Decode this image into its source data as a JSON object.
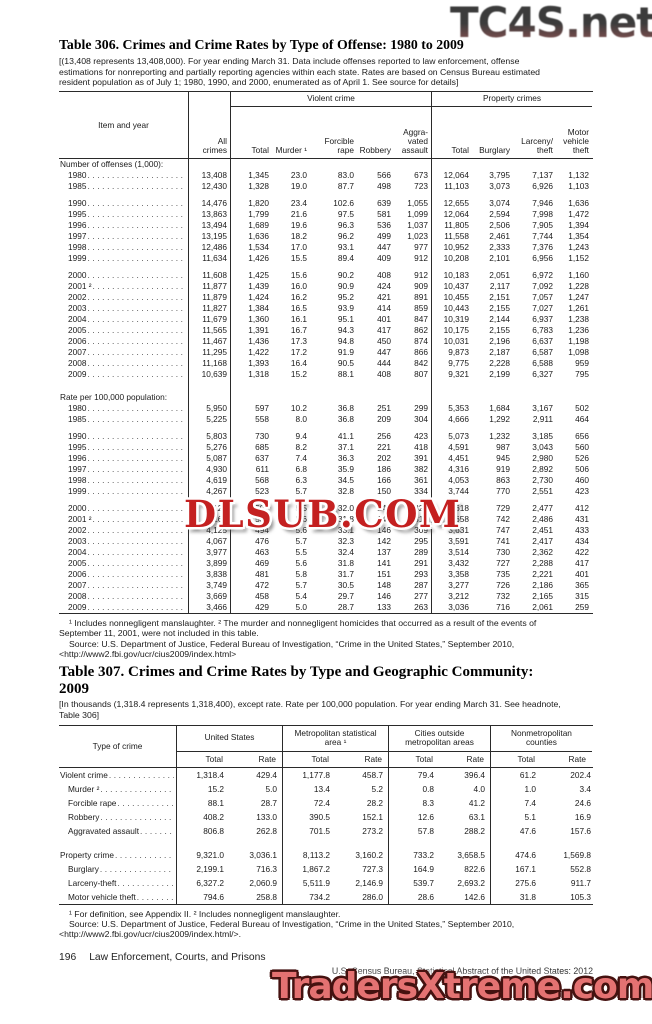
{
  "table306": {
    "title": "Table 306. Crimes and Crime Rates by Type of Offense: 1980 to 2009",
    "headnote_lines": [
      "[(13,408 represents 13,408,000). For year ending March 31. Data include offenses reported to law enforcement, offense",
      "estimations for nonreporting and partially reporting agencies within each state. Rates are based on Census Bureau estimated",
      "resident population as of July 1; 1980, 1990, and 2000, enumerated as of April 1. See source for details]"
    ],
    "header": {
      "stub": "Item and year",
      "all_crimes": "All\ncrimes",
      "violent_group": "Violent crime",
      "property_group": "Property crimes",
      "columns": [
        "Total",
        "Murder ¹",
        "Forcible\nrape",
        "Robbery",
        "Aggra-\nvated\nassault",
        "Total",
        "Burglary",
        "Larceny/\ntheft",
        "Motor\nvehicle\ntheft"
      ]
    },
    "rows": [
      {
        "type": "section",
        "label": "Number of offenses (1,000):"
      },
      {
        "type": "item",
        "label": "1980",
        "cells": [
          "13,408",
          "1,345",
          "23.0",
          "83.0",
          "566",
          "673",
          "12,064",
          "3,795",
          "7,137",
          "1,132"
        ]
      },
      {
        "type": "item",
        "label": "1985",
        "cells": [
          "12,430",
          "1,328",
          "19.0",
          "87.7",
          "498",
          "723",
          "11,103",
          "3,073",
          "6,926",
          "1,103"
        ]
      },
      {
        "type": "spacer"
      },
      {
        "type": "item",
        "label": "1990",
        "cells": [
          "14,476",
          "1,820",
          "23.4",
          "102.6",
          "639",
          "1,055",
          "12,655",
          "3,074",
          "7,946",
          "1,636"
        ]
      },
      {
        "type": "item",
        "label": "1995",
        "cells": [
          "13,863",
          "1,799",
          "21.6",
          "97.5",
          "581",
          "1,099",
          "12,064",
          "2,594",
          "7,998",
          "1,472"
        ]
      },
      {
        "type": "item",
        "label": "1996",
        "cells": [
          "13,494",
          "1,689",
          "19.6",
          "96.3",
          "536",
          "1,037",
          "11,805",
          "2,506",
          "7,905",
          "1,394"
        ]
      },
      {
        "type": "item",
        "label": "1997",
        "cells": [
          "13,195",
          "1,636",
          "18.2",
          "96.2",
          "499",
          "1,023",
          "11,558",
          "2,461",
          "7,744",
          "1,354"
        ]
      },
      {
        "type": "item",
        "label": "1998",
        "cells": [
          "12,486",
          "1,534",
          "17.0",
          "93.1",
          "447",
          "977",
          "10,952",
          "2,333",
          "7,376",
          "1,243"
        ]
      },
      {
        "type": "item",
        "label": "1999",
        "cells": [
          "11,634",
          "1,426",
          "15.5",
          "89.4",
          "409",
          "912",
          "10,208",
          "2,101",
          "6,956",
          "1,152"
        ]
      },
      {
        "type": "spacer"
      },
      {
        "type": "item",
        "label": "2000",
        "cells": [
          "11,608",
          "1,425",
          "15.6",
          "90.2",
          "408",
          "912",
          "10,183",
          "2,051",
          "6,972",
          "1,160"
        ]
      },
      {
        "type": "item",
        "label": "2001 ²",
        "cells": [
          "11,877",
          "1,439",
          "16.0",
          "90.9",
          "424",
          "909",
          "10,437",
          "2,117",
          "7,092",
          "1,228"
        ]
      },
      {
        "type": "item",
        "label": "2002",
        "cells": [
          "11,879",
          "1,424",
          "16.2",
          "95.2",
          "421",
          "891",
          "10,455",
          "2,151",
          "7,057",
          "1,247"
        ]
      },
      {
        "type": "item",
        "label": "2003",
        "cells": [
          "11,827",
          "1,384",
          "16.5",
          "93.9",
          "414",
          "859",
          "10,443",
          "2,155",
          "7,027",
          "1,261"
        ]
      },
      {
        "type": "item",
        "label": "2004",
        "cells": [
          "11,679",
          "1,360",
          "16.1",
          "95.1",
          "401",
          "847",
          "10,319",
          "2,144",
          "6,937",
          "1,238"
        ]
      },
      {
        "type": "item",
        "label": "2005",
        "cells": [
          "11,565",
          "1,391",
          "16.7",
          "94.3",
          "417",
          "862",
          "10,175",
          "2,155",
          "6,783",
          "1,236"
        ]
      },
      {
        "type": "item",
        "label": "2006",
        "cells": [
          "11,467",
          "1,436",
          "17.3",
          "94.8",
          "450",
          "874",
          "10,031",
          "2,196",
          "6,637",
          "1,198"
        ]
      },
      {
        "type": "item",
        "label": "2007",
        "cells": [
          "11,295",
          "1,422",
          "17.2",
          "91.9",
          "447",
          "866",
          "9,873",
          "2,187",
          "6,587",
          "1,098"
        ]
      },
      {
        "type": "item",
        "label": "2008",
        "cells": [
          "11,168",
          "1,393",
          "16.4",
          "90.5",
          "444",
          "842",
          "9,775",
          "2,228",
          "6,588",
          "959"
        ]
      },
      {
        "type": "item",
        "label": "2009",
        "cells": [
          "10,639",
          "1,318",
          "15.2",
          "88.1",
          "408",
          "807",
          "9,321",
          "2,199",
          "6,327",
          "795"
        ]
      },
      {
        "type": "spacer2"
      },
      {
        "type": "section",
        "label": "Rate per 100,000 population:"
      },
      {
        "type": "item",
        "label": "1980",
        "cells": [
          "5,950",
          "597",
          "10.2",
          "36.8",
          "251",
          "299",
          "5,353",
          "1,684",
          "3,167",
          "502"
        ]
      },
      {
        "type": "item",
        "label": "1985",
        "cells": [
          "5,225",
          "558",
          "8.0",
          "36.8",
          "209",
          "304",
          "4,666",
          "1,292",
          "2,911",
          "464"
        ]
      },
      {
        "type": "spacer"
      },
      {
        "type": "item",
        "label": "1990",
        "cells": [
          "5,803",
          "730",
          "9.4",
          "41.1",
          "256",
          "423",
          "5,073",
          "1,232",
          "3,185",
          "656"
        ]
      },
      {
        "type": "item",
        "label": "1995",
        "cells": [
          "5,276",
          "685",
          "8.2",
          "37.1",
          "221",
          "418",
          "4,591",
          "987",
          "3,043",
          "560"
        ]
      },
      {
        "type": "item",
        "label": "1996",
        "cells": [
          "5,087",
          "637",
          "7.4",
          "36.3",
          "202",
          "391",
          "4,451",
          "945",
          "2,980",
          "526"
        ]
      },
      {
        "type": "item",
        "label": "1997",
        "cells": [
          "4,930",
          "611",
          "6.8",
          "35.9",
          "186",
          "382",
          "4,316",
          "919",
          "2,892",
          "506"
        ]
      },
      {
        "type": "item",
        "label": "1998",
        "cells": [
          "4,619",
          "568",
          "6.3",
          "34.5",
          "166",
          "361",
          "4,053",
          "863",
          "2,730",
          "460"
        ]
      },
      {
        "type": "item",
        "label": "1999",
        "cells": [
          "4,267",
          "523",
          "5.7",
          "32.8",
          "150",
          "334",
          "3,744",
          "770",
          "2,551",
          "423"
        ]
      },
      {
        "type": "spacer"
      },
      {
        "type": "item",
        "label": "2000",
        "cells": [
          "4,125",
          "507",
          "5.5",
          "32.0",
          "145",
          "324",
          "3,618",
          "729",
          "2,477",
          "412"
        ]
      },
      {
        "type": "item",
        "label": "2001 ²",
        "cells": [
          "4,163",
          "504",
          "5.6",
          "31.8",
          "149",
          "318",
          "3,658",
          "742",
          "2,486",
          "431"
        ]
      },
      {
        "type": "item",
        "label": "2002",
        "cells": [
          "4,125",
          "494",
          "5.6",
          "33.1",
          "146",
          "309",
          "3,631",
          "747",
          "2,451",
          "433"
        ]
      },
      {
        "type": "item",
        "label": "2003",
        "cells": [
          "4,067",
          "476",
          "5.7",
          "32.3",
          "142",
          "295",
          "3,591",
          "741",
          "2,417",
          "434"
        ]
      },
      {
        "type": "item",
        "label": "2004",
        "cells": [
          "3,977",
          "463",
          "5.5",
          "32.4",
          "137",
          "289",
          "3,514",
          "730",
          "2,362",
          "422"
        ]
      },
      {
        "type": "item",
        "label": "2005",
        "cells": [
          "3,899",
          "469",
          "5.6",
          "31.8",
          "141",
          "291",
          "3,432",
          "727",
          "2,288",
          "417"
        ]
      },
      {
        "type": "item",
        "label": "2006",
        "cells": [
          "3,838",
          "481",
          "5.8",
          "31.7",
          "151",
          "293",
          "3,358",
          "735",
          "2,221",
          "401"
        ]
      },
      {
        "type": "item",
        "label": "2007",
        "cells": [
          "3,749",
          "472",
          "5.7",
          "30.5",
          "148",
          "287",
          "3,277",
          "726",
          "2,186",
          "365"
        ]
      },
      {
        "type": "item",
        "label": "2008",
        "cells": [
          "3,669",
          "458",
          "5.4",
          "29.7",
          "146",
          "277",
          "3,212",
          "732",
          "2,165",
          "315"
        ]
      },
      {
        "type": "item",
        "label": "2009",
        "cells": [
          "3,466",
          "429",
          "5.0",
          "28.7",
          "133",
          "263",
          "3,036",
          "716",
          "2,061",
          "259"
        ]
      }
    ],
    "footnote_lines": [
      "¹ Includes nonnegligent manslaughter. ² The murder and nonnegligent homicides that occurred as a result of the events of",
      "September 11, 2001, were not included in this table.",
      "Source: U.S. Department of Justice, Federal Bureau of Investigation, “Crime in the United States,” September 2010,",
      "<http://www2.fbi.gov/ucr/cius2009/index.html>"
    ]
  },
  "table307": {
    "title": "Table 307. Crimes and Crime Rates by Type and Geographic Community:\n2009",
    "headnote_lines": [
      "[In thousands (1,318.4 represents 1,318,400), except rate. Rate per 100,000 population. For year ending March 31. See headnote,",
      "Table 306]"
    ],
    "header": {
      "stub": "Type of crime",
      "groups": [
        "United States",
        "Metropolitan statistical\narea ¹",
        "Cities outside\nmetropolitan areas",
        "Nonmetropolitan\ncounties"
      ],
      "subcolumns": [
        "Total",
        "Rate",
        "Total",
        "Rate",
        "Total",
        "Rate",
        "Total",
        "Rate"
      ]
    },
    "rows": [
      {
        "type": "item",
        "label": "Violent crime",
        "cells": [
          "1,318.4",
          "429.4",
          "1,177.8",
          "458.7",
          "79.4",
          "396.4",
          "61.2",
          "202.4"
        ]
      },
      {
        "type": "item",
        "indent": true,
        "label": "Murder ²",
        "cells": [
          "15.2",
          "5.0",
          "13.4",
          "5.2",
          "0.8",
          "4.0",
          "1.0",
          "3.4"
        ]
      },
      {
        "type": "item",
        "indent": true,
        "label": "Forcible rape",
        "cells": [
          "88.1",
          "28.7",
          "72.4",
          "28.2",
          "8.3",
          "41.2",
          "7.4",
          "24.6"
        ]
      },
      {
        "type": "item",
        "indent": true,
        "label": "Robbery",
        "cells": [
          "408.2",
          "133.0",
          "390.5",
          "152.1",
          "12.6",
          "63.1",
          "5.1",
          "16.9"
        ]
      },
      {
        "type": "item",
        "indent": true,
        "label": "Aggravated assault",
        "cells": [
          "806.8",
          "262.8",
          "701.5",
          "273.2",
          "57.8",
          "288.2",
          "47.6",
          "157.6"
        ]
      },
      {
        "type": "spacer"
      },
      {
        "type": "item",
        "label": "Property crime",
        "cells": [
          "9,321.0",
          "3,036.1",
          "8,113.2",
          "3,160.2",
          "733.2",
          "3,658.5",
          "474.6",
          "1,569.8"
        ]
      },
      {
        "type": "item",
        "indent": true,
        "label": "Burglary",
        "cells": [
          "2,199.1",
          "716.3",
          "1,867.2",
          "727.3",
          "164.9",
          "822.6",
          "167.1",
          "552.8"
        ]
      },
      {
        "type": "item",
        "indent": true,
        "label": "Larceny-theft",
        "cells": [
          "6,327.2",
          "2,060.9",
          "5,511.9",
          "2,146.9",
          "539.7",
          "2,693.2",
          "275.6",
          "911.7"
        ]
      },
      {
        "type": "item",
        "indent": true,
        "label": "Motor vehicle theft",
        "cells": [
          "794.6",
          "258.8",
          "734.2",
          "286.0",
          "28.6",
          "142.6",
          "31.8",
          "105.3"
        ]
      }
    ],
    "footnote_lines": [
      "¹ For definition, see Appendix II. ² Includes nonnegligent manslaughter.",
      "Source: U.S. Department of Justice, Federal Bureau of Investigation, “Crime in the United States,” September 2010,",
      "<http://www2.fbi.gov/ucr/cius2009/index.html/>."
    ]
  },
  "footer": {
    "page_number": "196",
    "section_title": "Law Enforcement, Courts, and Prisons",
    "source": "U.S. Census Bureau, Statistical Abstract of the United States: 2012"
  },
  "watermarks": {
    "top_right": "TC4S.net",
    "middle": "DLSUB.COM",
    "bottom": "TradersXtreme.com"
  },
  "colors": {
    "rule": "#2a2a2a",
    "watermark_gray": "#3c3c3c",
    "watermark_red": "#c42020",
    "watermark_salmon": "#e47272"
  }
}
